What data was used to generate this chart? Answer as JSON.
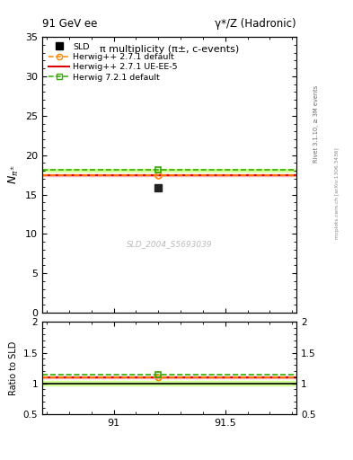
{
  "title_left": "91 GeV ee",
  "title_right": "γ*/Z (Hadronic)",
  "plot_title": "π multiplicity (π±, c-events)",
  "ylabel_main": "$N_{\\pi^{\\pm}}$",
  "ylabel_ratio": "Ratio to SLD",
  "watermark": "SLD_2004_S5693039",
  "rivet_text": "Rivet 3.1.10, ≥ 3M events",
  "arxiv_text": "mcplots.cern.ch [arXiv:1306.3436]",
  "xmin": 90.68,
  "xmax": 91.82,
  "ymin_main": 0,
  "ymax_main": 35,
  "ymin_ratio": 0.5,
  "ymax_ratio": 2.0,
  "x_ticks": [
    91.0,
    91.5
  ],
  "x_tick_labels": [
    "91",
    "91.5"
  ],
  "y_ticks_main": [
    0,
    5,
    10,
    15,
    20,
    25,
    30,
    35
  ],
  "y_ticks_ratio": [
    0.5,
    1.0,
    1.5,
    2.0
  ],
  "y_tick_labels_ratio": [
    "0.5",
    "1",
    "1.5",
    "2"
  ],
  "data_x": 91.2,
  "data_y": 15.9,
  "herwig_default_x": 91.2,
  "herwig_default_y": 17.45,
  "herwig72_x": 91.2,
  "herwig72_y": 18.1,
  "herwig_line_y": 17.45,
  "herwig72_line_y": 18.1,
  "red_band_lo": 17.3,
  "red_band_hi": 17.6,
  "green_band_lo": 17.92,
  "green_band_hi": 18.28,
  "ratio_herwig_default": 1.095,
  "ratio_herwig72": 1.135,
  "ratio_red_line": 1.095,
  "ratio_green_line": 1.135,
  "ratio_red_band_lo": 1.085,
  "ratio_red_band_hi": 1.105,
  "ratio_green_band_lo": 0.95,
  "ratio_green_band_hi": 1.05,
  "sld_color": "#222222",
  "red_color": "#dd0000",
  "orange_color": "#ff8800",
  "green_color": "#33aa00",
  "red_band_color": "#ffaaaa",
  "green_band_color": "#ccff88",
  "ratio_green_fill_lo": 0.96,
  "ratio_green_fill_hi": 1.04,
  "legend_entries": [
    "SLD",
    "Herwig++ 2.7.1 default",
    "Herwig++ 2.7.1 UE-EE-5",
    "Herwig 7.2.1 default"
  ]
}
